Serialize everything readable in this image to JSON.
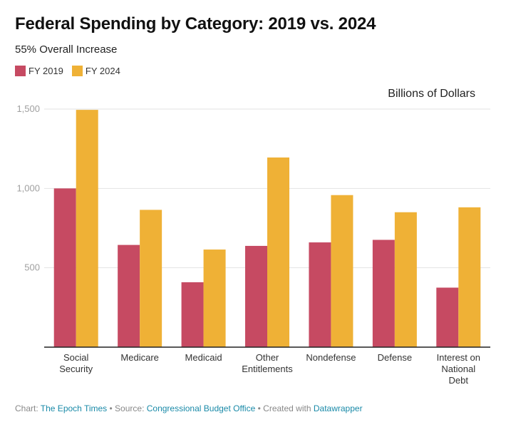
{
  "header": {
    "title": "Federal Spending by Category: 2019 vs. 2024",
    "subtitle": "55% Overall Increase",
    "unit_label": "Billions of Dollars"
  },
  "legend": [
    {
      "label": "FY 2019",
      "color": "#c64a62"
    },
    {
      "label": "FY 2024",
      "color": "#efb136"
    }
  ],
  "footer": {
    "chart_prefix": "Chart: ",
    "chart_link": "The Epoch Times",
    "source_prefix": " • Source: ",
    "source_link": "Congressional Budget Office",
    "created_prefix": " • Created with ",
    "created_link": "Datawrapper"
  },
  "chart_data": {
    "type": "bar",
    "title": "Federal Spending by Category: 2019 vs. 2024",
    "subtitle": "55% Overall Increase",
    "xlabel": "",
    "ylabel": "Billions of Dollars",
    "ylim": [
      0,
      1500
    ],
    "yticks": [
      500,
      1000,
      1500
    ],
    "ytick_labels": [
      "500",
      "1,000",
      "1,500"
    ],
    "grid": true,
    "legend_position": "top-left",
    "categories": [
      [
        "Social",
        "Security"
      ],
      [
        "Medicare"
      ],
      [
        "Medicaid"
      ],
      [
        "Other",
        "Entitlements"
      ],
      [
        "Nondefense"
      ],
      [
        "Defense"
      ],
      [
        "Interest on",
        "National",
        "Debt"
      ]
    ],
    "series": [
      {
        "name": "FY 2019",
        "color": "#c64a62",
        "values": [
          1000,
          644,
          409,
          638,
          660,
          676,
          375
        ]
      },
      {
        "name": "FY 2024",
        "color": "#efb136",
        "values": [
          1495,
          865,
          615,
          1195,
          958,
          850,
          881
        ]
      }
    ]
  }
}
